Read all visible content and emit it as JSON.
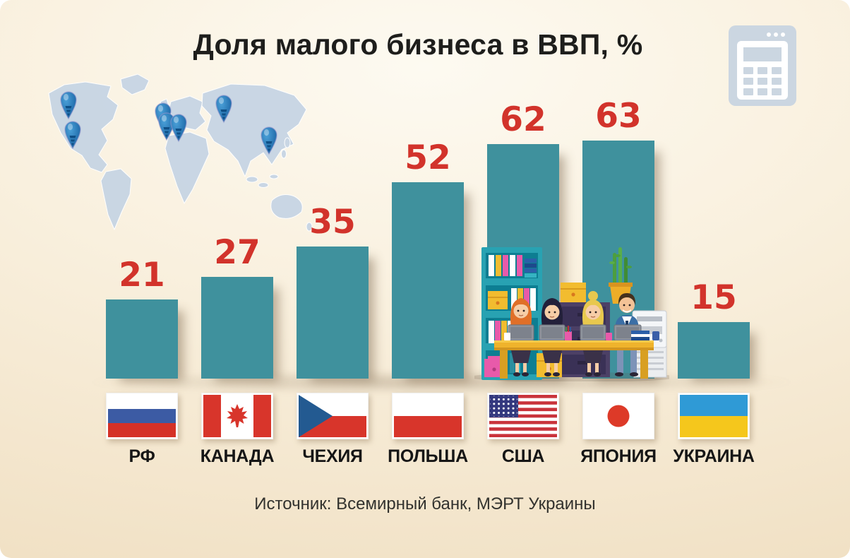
{
  "title": "Доля малого бизнеса в ВВП, %",
  "source_note": "Источник: Всемирный банк, МЭРТ Украины",
  "chart_data": {
    "type": "bar",
    "title": "Доля малого бизнеса в ВВП, %",
    "categories": [
      "РФ",
      "КАНАДА",
      "ЧЕХИЯ",
      "ПОЛЬША",
      "США",
      "ЯПОНИЯ",
      "УКРАИНА"
    ],
    "values": [
      21,
      27,
      35,
      52,
      62,
      63,
      15
    ],
    "unit": "%",
    "ylim": [
      0,
      70
    ],
    "grid": false,
    "legend": "none",
    "value_labels_shown": true,
    "flags": [
      "ru",
      "ca",
      "cz",
      "pl",
      "us",
      "jp",
      "ua"
    ]
  },
  "colors": {
    "bar": "#3f919d",
    "value_label": "#d2332b",
    "title_text": "#1e1e1c",
    "category_label": "#161616",
    "background_top": "#fdfaf1",
    "background_bottom": "#f1e1c5",
    "map_landmass": "#c7d5e4",
    "map_pin": "#2170b0",
    "calculator_icon": "#cbd6e1"
  },
  "decorations": {
    "world_map": "world-map-illustration",
    "pin_icon": "location-pin-icon",
    "pin_count": 7,
    "calculator": "calculator-icon",
    "office_scene": "office-teamwork-illustration"
  }
}
